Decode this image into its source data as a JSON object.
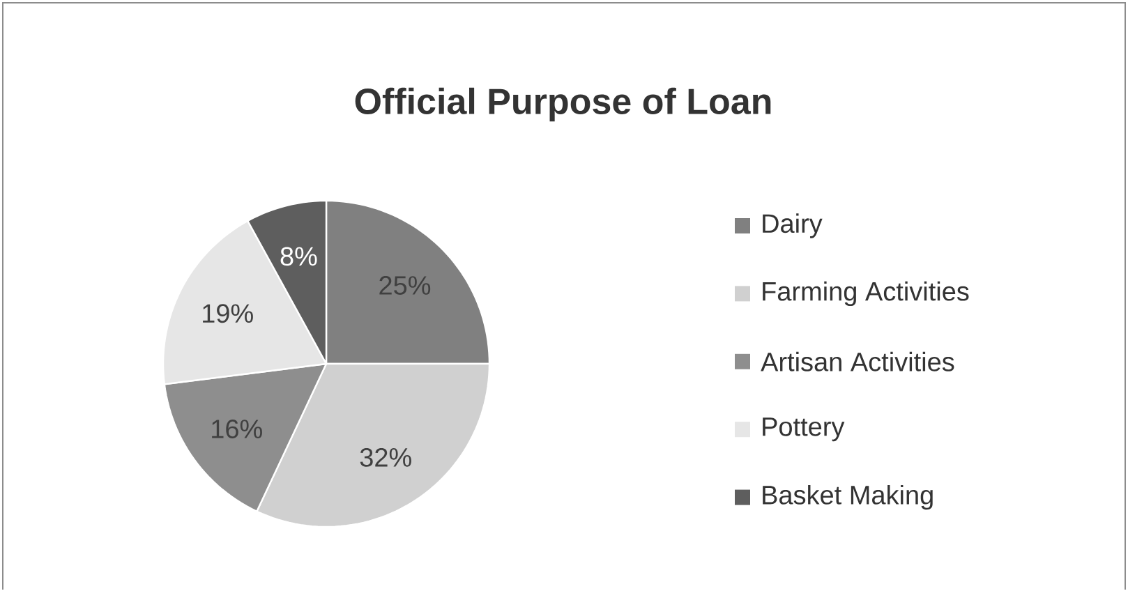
{
  "chart_data": {
    "type": "pie",
    "title": "Official Purpose of Loan",
    "categories": [
      "Dairy",
      "Farming Activities",
      "Artisan Activities",
      "Pottery",
      "Basket Making"
    ],
    "values": [
      25,
      32,
      16,
      19,
      8
    ],
    "colors": [
      "#808080",
      "#d0d0d0",
      "#8e8e8e",
      "#e6e6e6",
      "#5e5e5e"
    ],
    "value_labels": [
      "25%",
      "32%",
      "16%",
      "19%",
      "8%"
    ],
    "legend": "right"
  }
}
